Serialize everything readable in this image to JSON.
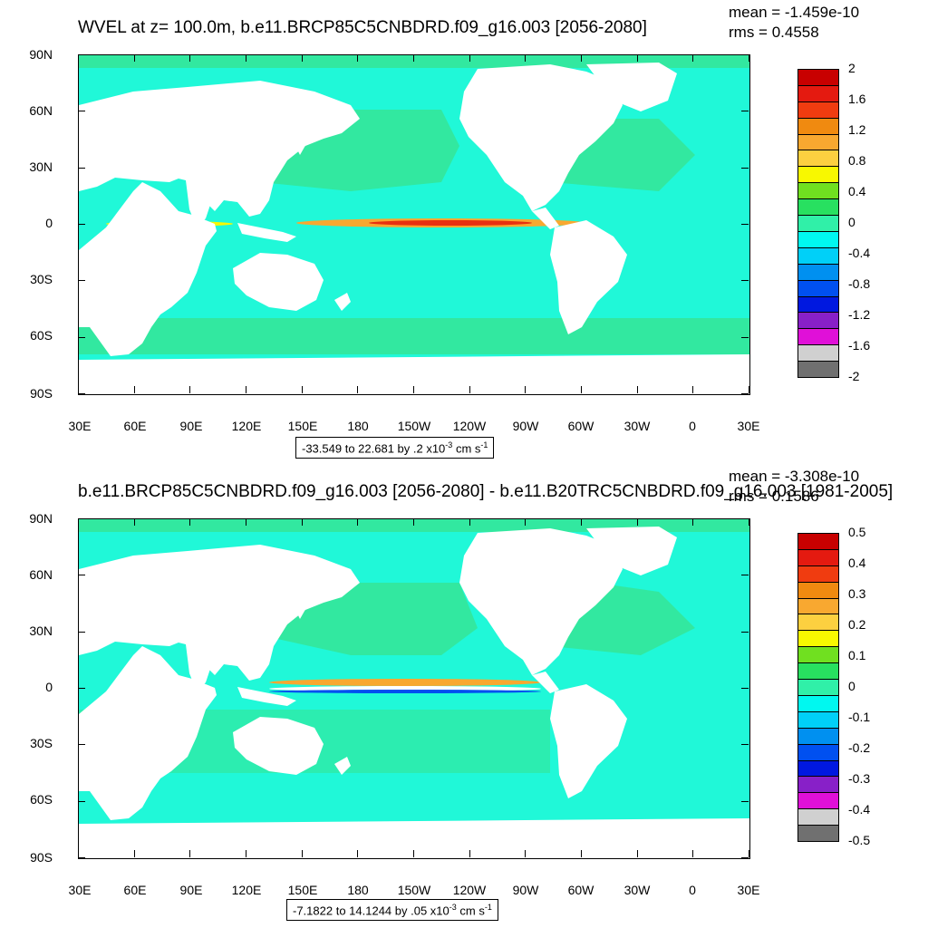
{
  "panels": [
    {
      "title": "WVEL at z= 100.0m, b.e11.BRCP85C5CNBDRD.f09_g16.003 [2056-2080]",
      "mean_label": "mean = -1.459e-10",
      "rms_label": "rms = 0.4558",
      "range_label": "-33.549 to 22.681 by .2 x10",
      "range_exp": "-3",
      "range_unit": "cm s",
      "range_unit_exp": "-1",
      "colorbar_labels": [
        "2",
        "1.6",
        "1.2",
        "0.8",
        "0.4",
        "0",
        "-0.4",
        "-0.8",
        "-1.2",
        "-1.6",
        "-2"
      ]
    },
    {
      "title": "b.e11.BRCP85C5CNBDRD.f09_g16.003 [2056-2080] - b.e11.B20TRC5CNBDRD.f09_g16.003 [1981-2005]",
      "mean_label": "mean = -3.308e-10",
      "rms_label": "rms = 0.1586",
      "range_label": "-7.1822 to 14.1244 by .05 x10",
      "range_exp": "-3",
      "range_unit": "cm s",
      "range_unit_exp": "-1",
      "colorbar_labels": [
        "0.5",
        "0.4",
        "0.3",
        "0.2",
        "0.1",
        "0",
        "-0.1",
        "-0.2",
        "-0.3",
        "-0.4",
        "-0.5"
      ]
    }
  ],
  "lat_labels": [
    "90N",
    "60N",
    "30N",
    "0",
    "30S",
    "60S",
    "90S"
  ],
  "lon_labels": [
    "30E",
    "60E",
    "90E",
    "120E",
    "150E",
    "180",
    "150W",
    "120W",
    "90W",
    "60W",
    "30W",
    "0",
    "30E"
  ],
  "colorbar_colors": [
    "#c80000",
    "#e41a10",
    "#f03c10",
    "#f08a10",
    "#f8a830",
    "#fcd040",
    "#f8f800",
    "#70e020",
    "#28e060",
    "#30f0a8",
    "#00f8f0",
    "#00d0f8",
    "#0090f0",
    "#0050f0",
    "#0018e0",
    "#8820c8",
    "#e010d8",
    "#d0d0d0",
    "#707070"
  ],
  "colors": {
    "ocean_base": "#32e8a0",
    "ocean_neg": "#20f8d8",
    "land": "#ffffff",
    "upwell": "#e83010",
    "border": "#000000"
  }
}
